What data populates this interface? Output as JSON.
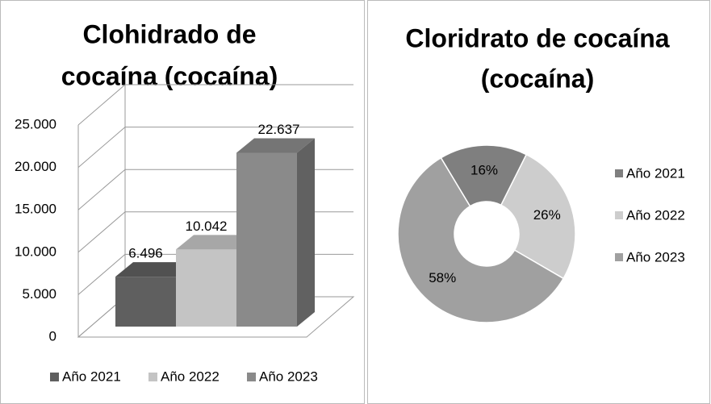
{
  "chart_data": [
    {
      "type": "bar3d",
      "title": [
        "Clohidrado de",
        "cocaína (cocaína)"
      ],
      "series": [
        {
          "name": "Año 2021",
          "color": "#5f5f5f",
          "values": [
            6496
          ],
          "value_labels": [
            "6.496"
          ]
        },
        {
          "name": "Año 2022",
          "color": "#c4c4c4",
          "values": [
            10042
          ],
          "value_labels": [
            "10.042"
          ]
        },
        {
          "name": "Año 2023",
          "color": "#8a8a8a",
          "values": [
            22637
          ],
          "value_labels": [
            "22.637"
          ]
        }
      ],
      "ylim": [
        0,
        25000
      ],
      "yticks": [
        {
          "value": 0,
          "label": "0"
        },
        {
          "value": 5000,
          "label": "5.000"
        },
        {
          "value": 10000,
          "label": "10.000"
        },
        {
          "value": 15000,
          "label": "15.000"
        },
        {
          "value": 20000,
          "label": "20.000"
        },
        {
          "value": 25000,
          "label": "25.000"
        }
      ],
      "grid": true,
      "legend": "bottom"
    },
    {
      "type": "donut",
      "title": [
        "Cloridrato de cocaína",
        "(cocaína)"
      ],
      "categories": [
        "Año 2021",
        "Año 2022",
        "Año 2023"
      ],
      "values": [
        16,
        26,
        58
      ],
      "value_labels": [
        "16%",
        "26%",
        "58%"
      ],
      "colors": [
        "#7f7f7f",
        "#cdcdcd",
        "#a0a0a0"
      ],
      "legend": "right"
    }
  ]
}
